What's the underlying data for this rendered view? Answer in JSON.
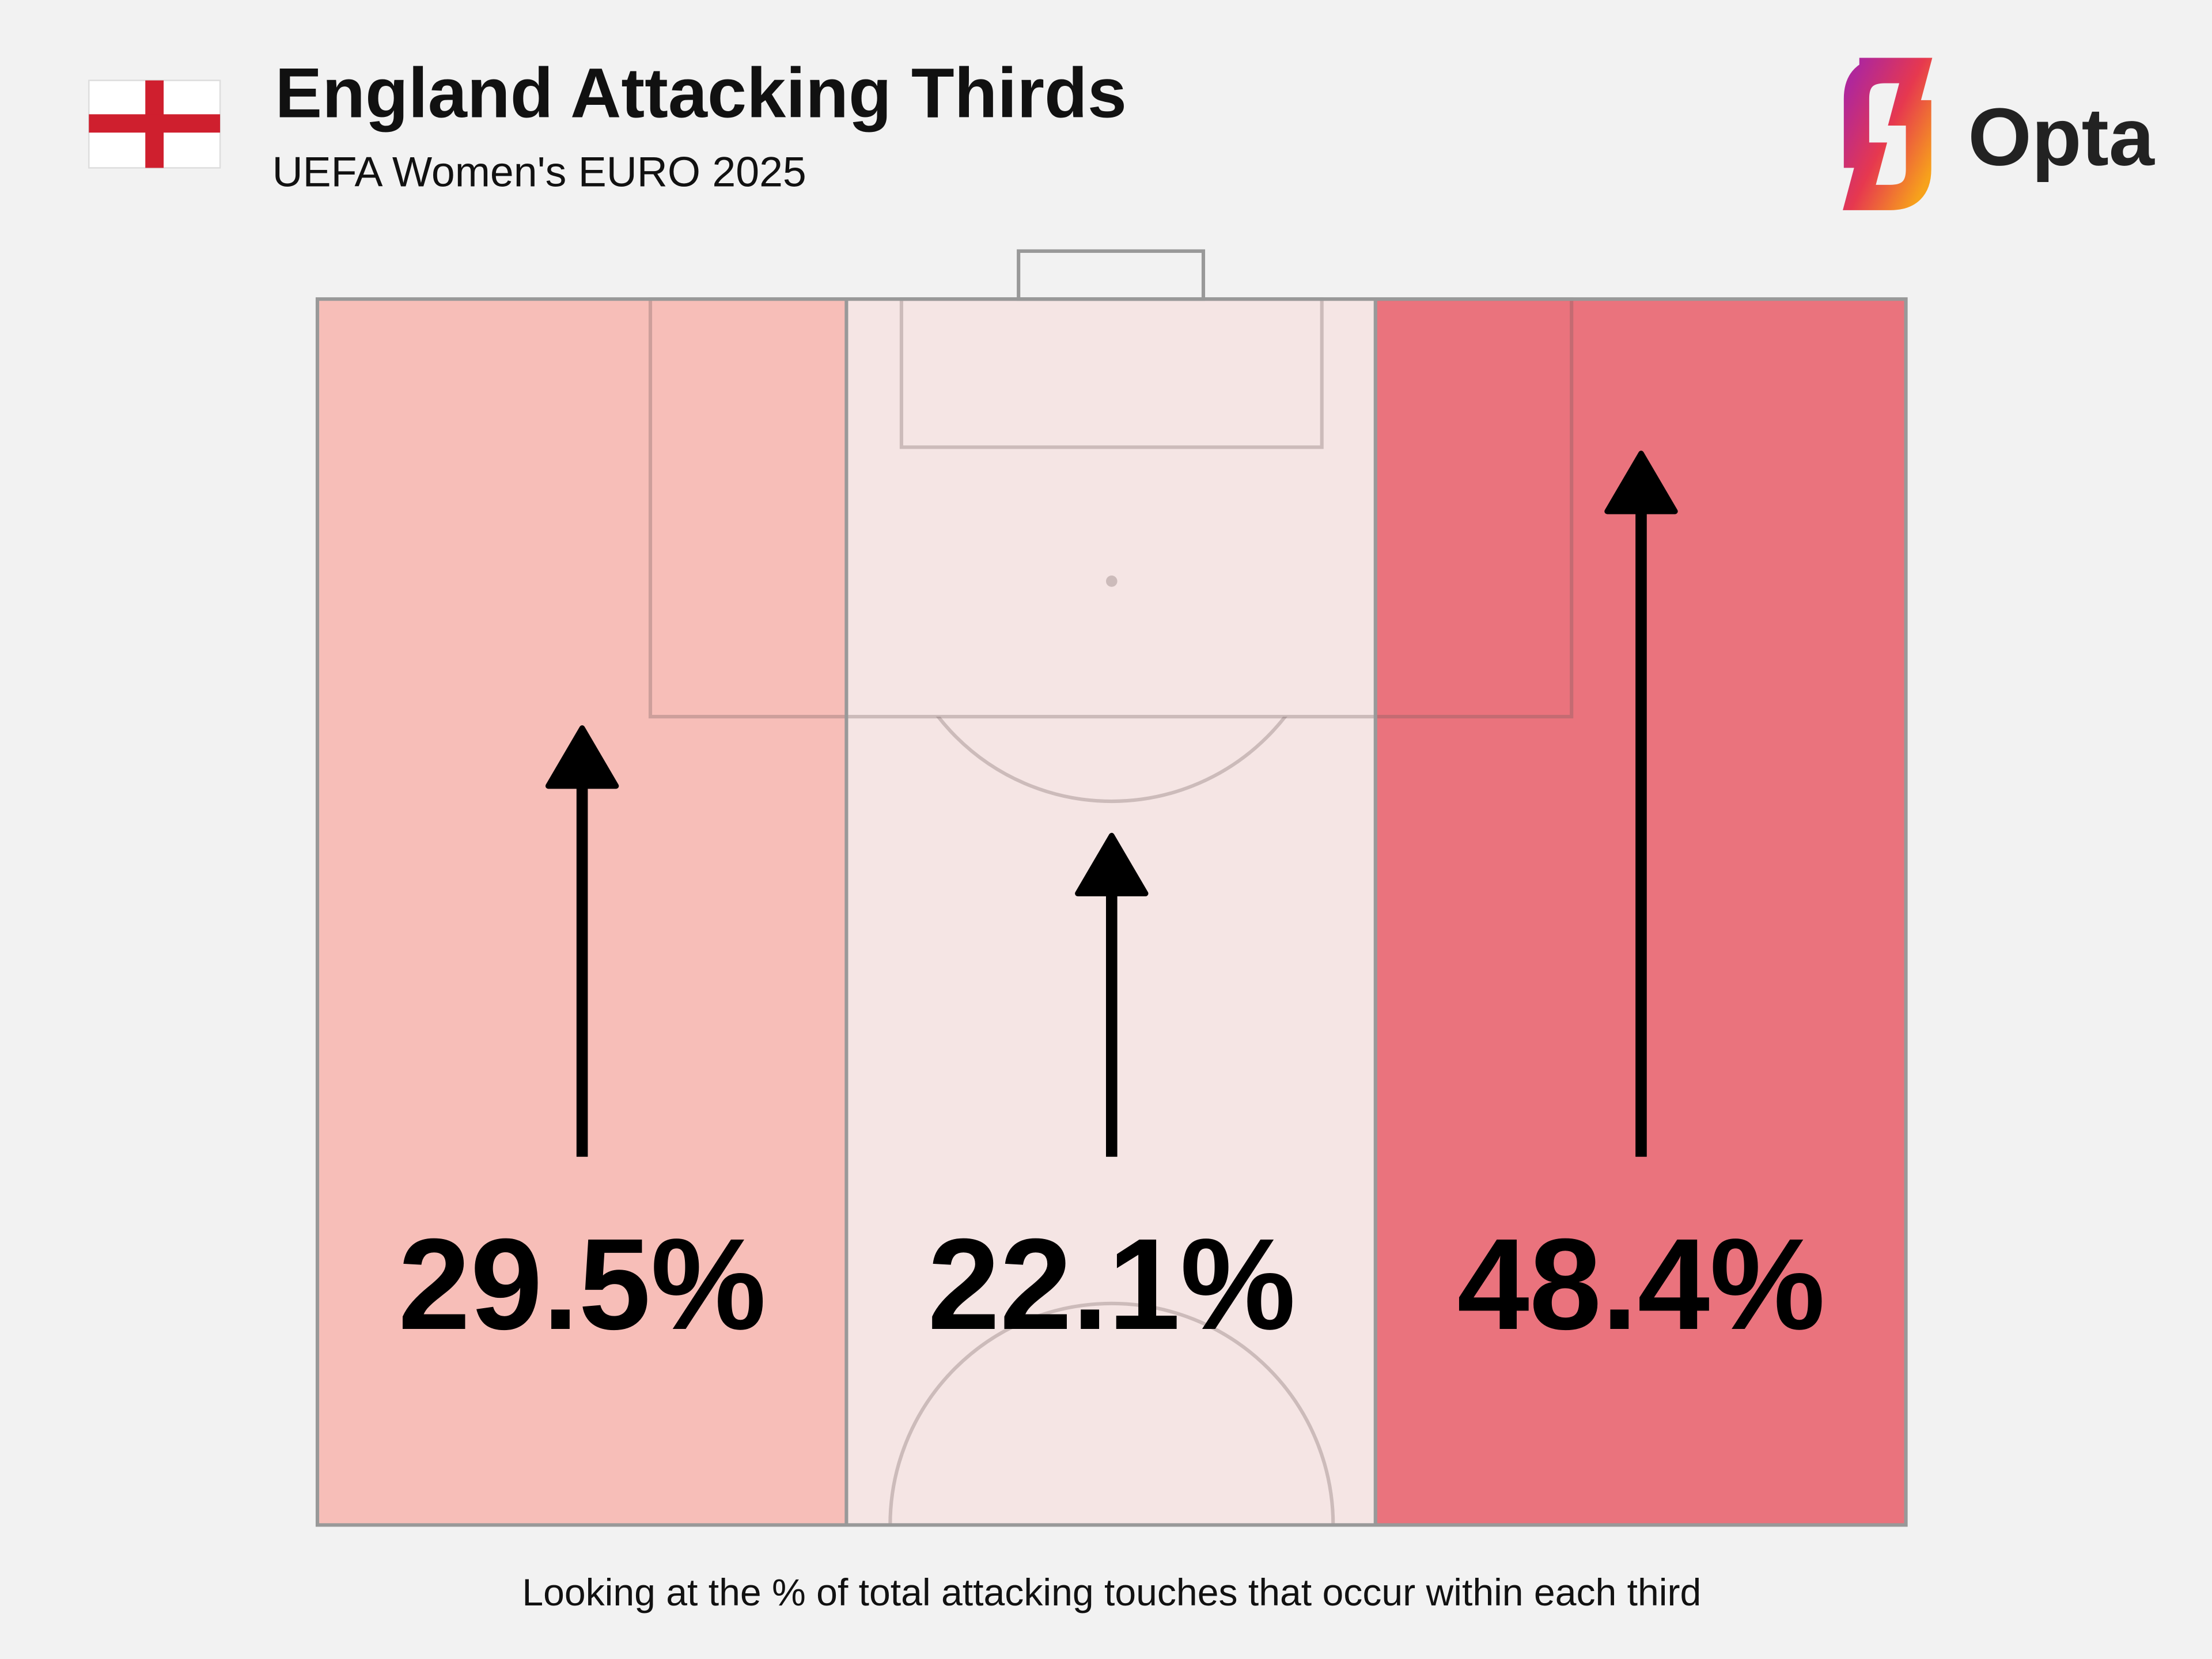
{
  "chart_data": {
    "type": "pitch-thirds",
    "title": "England Attacking Thirds",
    "subtitle": "UEFA Women's EURO 2025",
    "footnote": "Looking at the % of total attacking touches that occur within each third",
    "brand": "Opta",
    "values": [
      29.5,
      22.1,
      48.4
    ],
    "value_labels": [
      "29.5%",
      "22.1%",
      "48.4%"
    ],
    "colors": [
      "#f7beb8",
      "#f5e5e4",
      "#ea737d"
    ]
  }
}
